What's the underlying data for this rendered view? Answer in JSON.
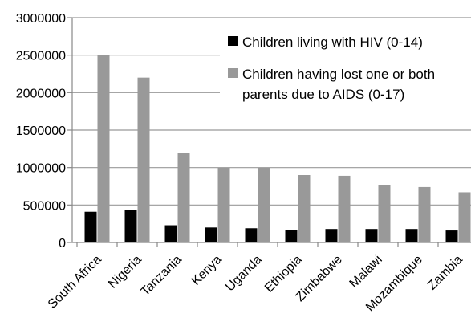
{
  "chart_data": {
    "type": "bar",
    "categories": [
      "South Africa",
      "Nigeria",
      "Tanzania",
      "Kenya",
      "Uganda",
      "Ethiopia",
      "Zimbabwe",
      "Malawi",
      "Mozambique",
      "Zambia"
    ],
    "series": [
      {
        "name": "Children living with HIV (0-14)",
        "color": "#000000",
        "values": [
          410000,
          430000,
          230000,
          200000,
          190000,
          170000,
          180000,
          180000,
          180000,
          160000
        ]
      },
      {
        "name": "Children having lost one or both parents due to AIDS (0-17)",
        "color": "#999999",
        "values": [
          2500000,
          2200000,
          1200000,
          1000000,
          1000000,
          900000,
          890000,
          770000,
          740000,
          670000
        ]
      }
    ],
    "ylim": [
      0,
      3000000
    ],
    "yticks": [
      "0",
      "500000",
      "1000000",
      "1500000",
      "2000000",
      "2500000",
      "3000000"
    ],
    "grid": true,
    "legend_position": "top-right"
  }
}
